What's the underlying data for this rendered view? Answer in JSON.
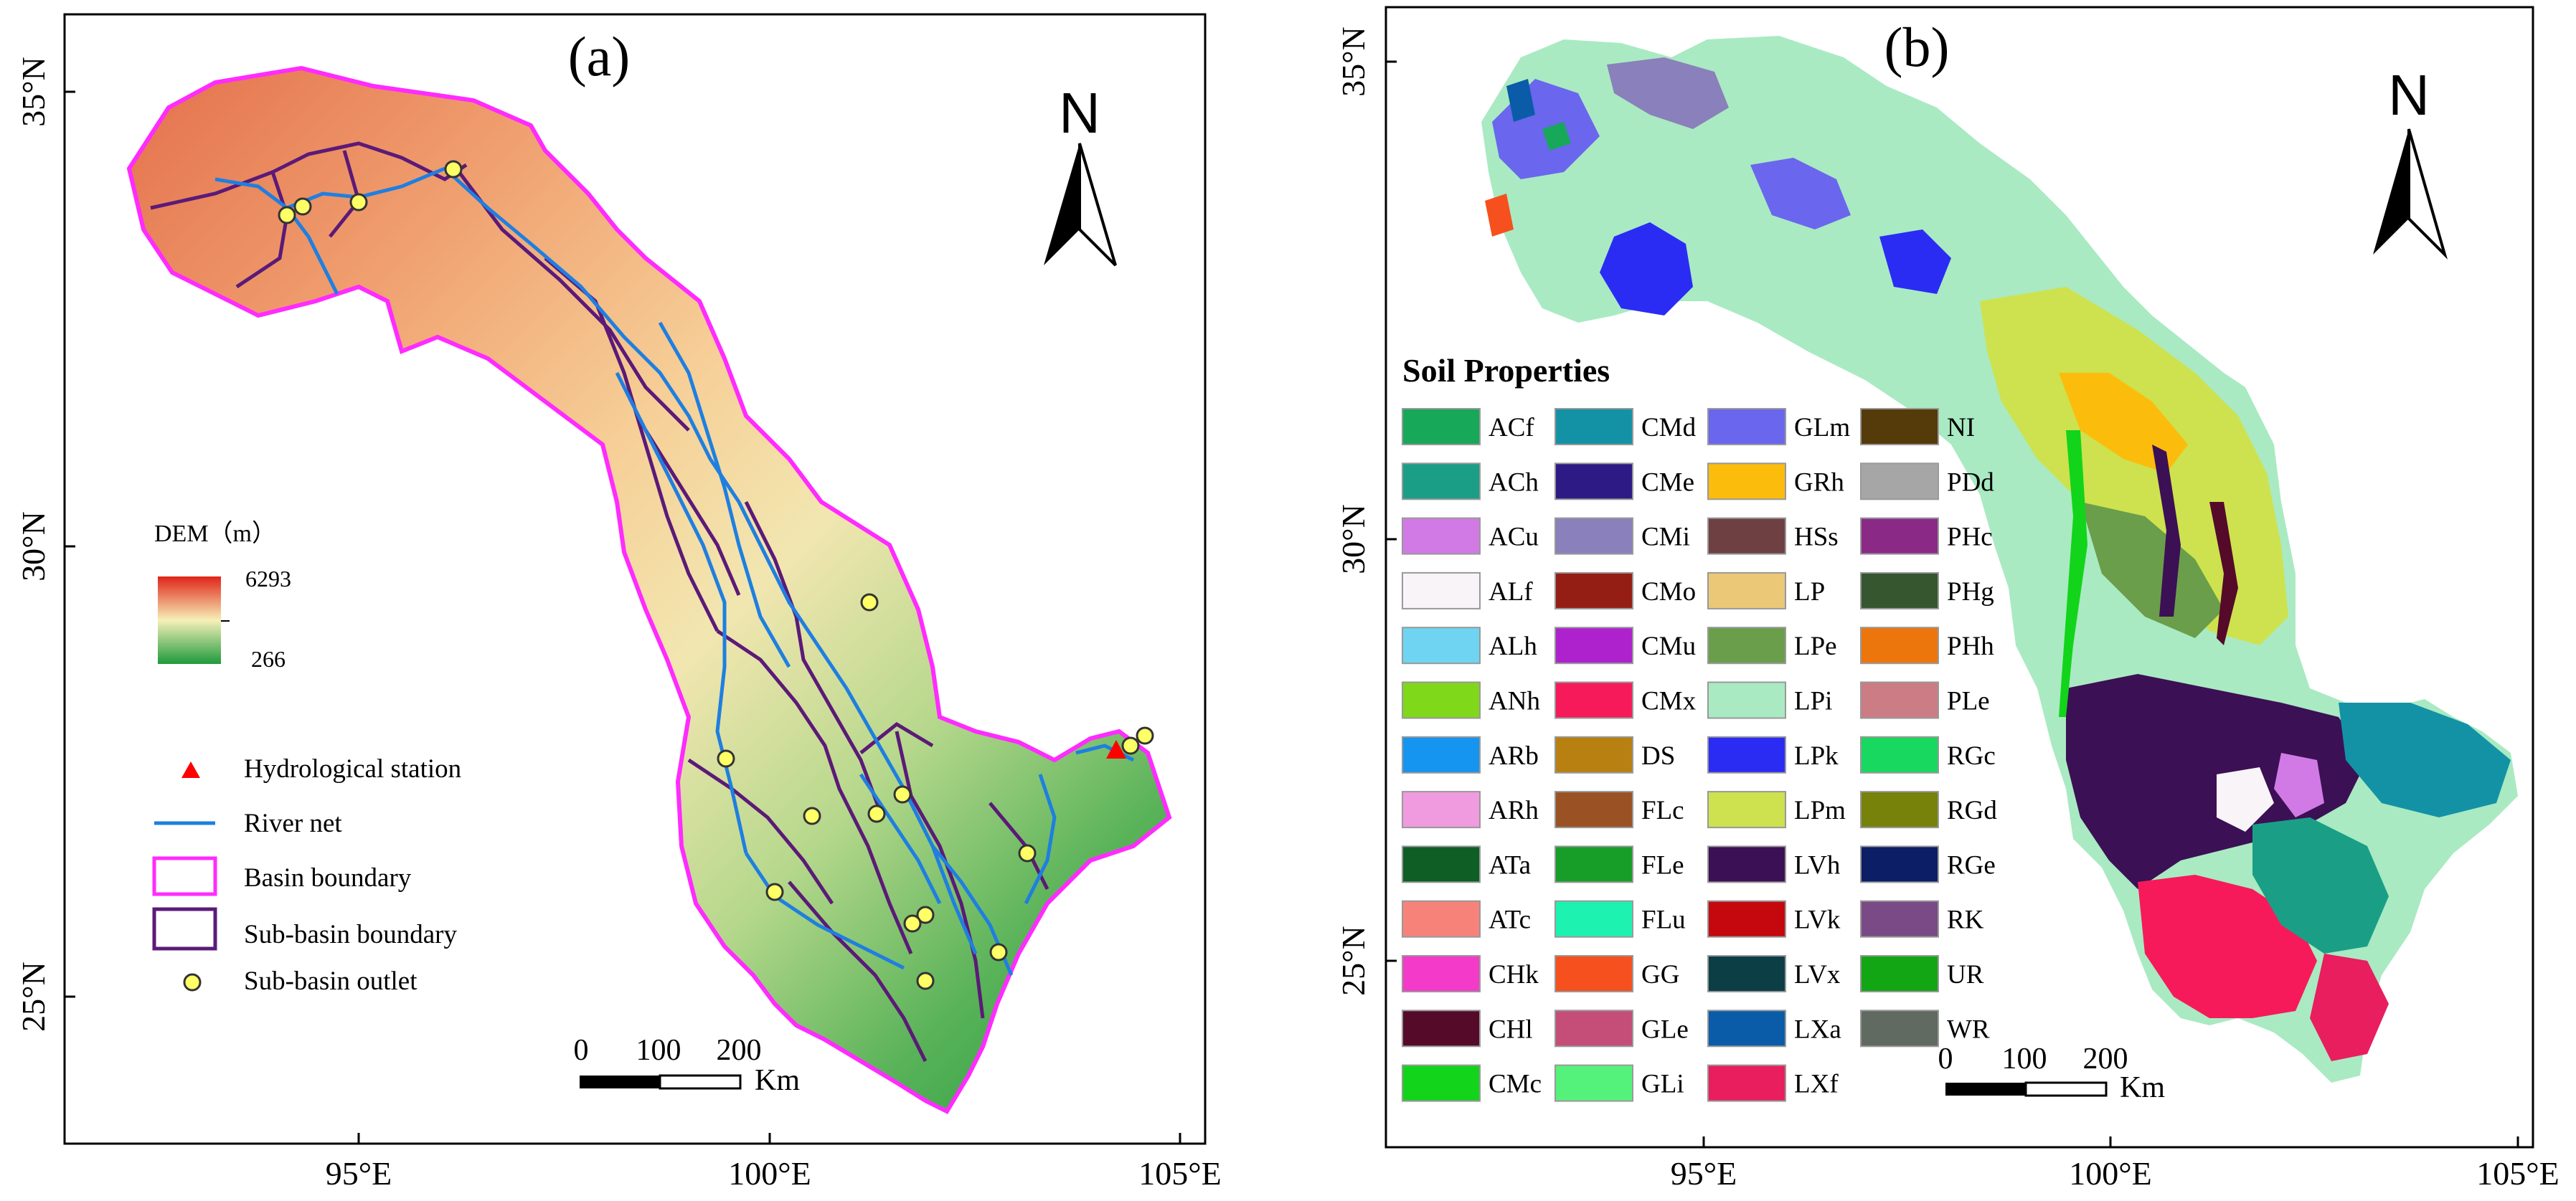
{
  "panel_a": {
    "label": "(a)",
    "lon_ticks": [
      "95°E",
      "100°E",
      "105°E"
    ],
    "lat_ticks": [
      "35°N",
      "30°N",
      "25°N"
    ],
    "north": "N",
    "dem": {
      "title": "DEM（m）",
      "max": "6293",
      "min": "266",
      "colors": [
        "#e02418",
        "#f6f0b8",
        "#1e9a3c"
      ]
    },
    "legend": [
      {
        "label": "Hydrological station",
        "symbol": "triangle",
        "color": "#ff0000"
      },
      {
        "label": "River net",
        "symbol": "line",
        "color": "#1f7fe0"
      },
      {
        "label": "Basin boundary",
        "symbol": "box",
        "color": "#ff2bff"
      },
      {
        "label": "Sub-basin boundary",
        "symbol": "box",
        "color": "#5b1a78"
      },
      {
        "label": "Sub-basin outlet",
        "symbol": "circle",
        "color": "#ffff66"
      }
    ],
    "scale": {
      "ticks": [
        "0",
        "100",
        "200"
      ],
      "unit": "Km"
    }
  },
  "panel_b": {
    "label": "(b)",
    "lon_ticks": [
      "95°E",
      "100°E",
      "105°E"
    ],
    "lat_ticks": [
      "35°N",
      "30°N",
      "25°N"
    ],
    "north": "N",
    "soil_title": "Soil Properties",
    "soil_legend": [
      [
        {
          "code": "ACf",
          "color": "#17a85a"
        },
        {
          "code": "ACh",
          "color": "#1a9f86"
        },
        {
          "code": "ACu",
          "color": "#d17ae6"
        },
        {
          "code": "ALf",
          "color": "#f8f4f8"
        },
        {
          "code": "ALh",
          "color": "#6fd4f2"
        },
        {
          "code": "ANh",
          "color": "#80d81a"
        },
        {
          "code": "ARb",
          "color": "#1594f0"
        },
        {
          "code": "ARh",
          "color": "#f09be0"
        },
        {
          "code": "ATa",
          "color": "#0e5e26"
        },
        {
          "code": "ATc",
          "color": "#f7827a"
        },
        {
          "code": "CHk",
          "color": "#f43ac8"
        },
        {
          "code": "CHl",
          "color": "#550a2a"
        },
        {
          "code": "CMc",
          "color": "#12d41a"
        }
      ],
      [
        {
          "code": "CMd",
          "color": "#1392a6"
        },
        {
          "code": "CMe",
          "color": "#2d1a84"
        },
        {
          "code": "CMi",
          "color": "#8a80bc"
        },
        {
          "code": "CMo",
          "color": "#951e14"
        },
        {
          "code": "CMu",
          "color": "#ae22ce"
        },
        {
          "code": "CMx",
          "color": "#f61a5a"
        },
        {
          "code": "DS",
          "color": "#b78010"
        },
        {
          "code": "FLc",
          "color": "#9a5224"
        },
        {
          "code": "FLe",
          "color": "#169e28"
        },
        {
          "code": "FLu",
          "color": "#1df2b0"
        },
        {
          "code": "GG",
          "color": "#f6501e"
        },
        {
          "code": "GLe",
          "color": "#c44e78"
        },
        {
          "code": "GLi",
          "color": "#54f27a"
        }
      ],
      [
        {
          "code": "GLm",
          "color": "#6a66ee"
        },
        {
          "code": "GRh",
          "color": "#fcbc0c"
        },
        {
          "code": "HSs",
          "color": "#6e4042"
        },
        {
          "code": "LP",
          "color": "#eac878"
        },
        {
          "code": "LPe",
          "color": "#6a9e4a"
        },
        {
          "code": "LPi",
          "color": "#a9eac2"
        },
        {
          "code": "LPk",
          "color": "#2a2cf4"
        },
        {
          "code": "LPm",
          "color": "#cde24e"
        },
        {
          "code": "LVh",
          "color": "#3c1054"
        },
        {
          "code": "LVk",
          "color": "#c4080e"
        },
        {
          "code": "LVx",
          "color": "#0c3e46"
        },
        {
          "code": "LXa",
          "color": "#0a5ca8"
        },
        {
          "code": "LXf",
          "color": "#e81e5e"
        }
      ],
      [
        {
          "code": "NI",
          "color": "#553a0a"
        },
        {
          "code": "PDd",
          "color": "#a6a6a6"
        },
        {
          "code": "PHc",
          "color": "#8a2a86"
        },
        {
          "code": "PHg",
          "color": "#35562e"
        },
        {
          "code": "PHh",
          "color": "#ec760c"
        },
        {
          "code": "PLe",
          "color": "#cc7c84"
        },
        {
          "code": "RGc",
          "color": "#18d860"
        },
        {
          "code": "RGd",
          "color": "#76820a"
        },
        {
          "code": "RGe",
          "color": "#0c1e66"
        },
        {
          "code": "RK",
          "color": "#7a4a86"
        },
        {
          "code": "UR",
          "color": "#12a614"
        },
        {
          "code": "WR",
          "color": "#606a60"
        }
      ]
    ],
    "scale": {
      "ticks": [
        "0",
        "100",
        "200"
      ],
      "unit": "Km"
    }
  }
}
